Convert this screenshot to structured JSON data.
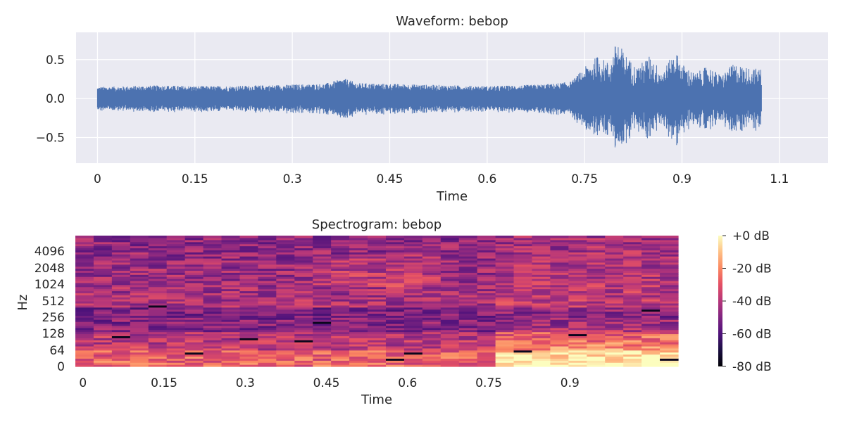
{
  "chart_data": [
    {
      "type": "line",
      "title": "Waveform: bebop",
      "xlabel": "Time",
      "ylabel": "",
      "xlim": [
        -0.033,
        1.125
      ],
      "ylim": [
        -0.83,
        0.85
      ],
      "x_ticks": [
        0,
        0.15,
        0.3,
        0.45,
        0.6,
        0.75,
        0.9,
        1.05
      ],
      "x_tick_labels": [
        "0",
        "0.15",
        "0.3",
        "0.45",
        "0.6",
        "0.75",
        "0.9",
        "1.1"
      ],
      "y_ticks": [
        0.5,
        0.0,
        -0.5
      ],
      "y_tick_labels": [
        "0.5",
        "0.0",
        "−0.5"
      ],
      "grid": true,
      "line_color": "#4c72b0",
      "background": "#eaeaf2",
      "duration": 1.023,
      "envelope": [
        {
          "t": 0.0,
          "a": 0.15
        },
        {
          "t": 0.05,
          "a": 0.16
        },
        {
          "t": 0.1,
          "a": 0.17
        },
        {
          "t": 0.15,
          "a": 0.16
        },
        {
          "t": 0.2,
          "a": 0.16
        },
        {
          "t": 0.25,
          "a": 0.17
        },
        {
          "t": 0.3,
          "a": 0.18
        },
        {
          "t": 0.35,
          "a": 0.19
        },
        {
          "t": 0.38,
          "a": 0.26
        },
        {
          "t": 0.4,
          "a": 0.2
        },
        {
          "t": 0.45,
          "a": 0.19
        },
        {
          "t": 0.5,
          "a": 0.18
        },
        {
          "t": 0.55,
          "a": 0.17
        },
        {
          "t": 0.6,
          "a": 0.16
        },
        {
          "t": 0.65,
          "a": 0.17
        },
        {
          "t": 0.7,
          "a": 0.19
        },
        {
          "t": 0.73,
          "a": 0.22
        },
        {
          "t": 0.75,
          "a": 0.4
        },
        {
          "t": 0.77,
          "a": 0.55
        },
        {
          "t": 0.79,
          "a": 0.45
        },
        {
          "t": 0.8,
          "a": 0.78
        },
        {
          "t": 0.81,
          "a": 0.6
        },
        {
          "t": 0.83,
          "a": 0.4
        },
        {
          "t": 0.85,
          "a": 0.55
        },
        {
          "t": 0.87,
          "a": 0.35
        },
        {
          "t": 0.89,
          "a": 0.62
        },
        {
          "t": 0.9,
          "a": 0.45
        },
        {
          "t": 0.92,
          "a": 0.32
        },
        {
          "t": 0.94,
          "a": 0.42
        },
        {
          "t": 0.96,
          "a": 0.3
        },
        {
          "t": 0.98,
          "a": 0.45
        },
        {
          "t": 1.0,
          "a": 0.4
        },
        {
          "t": 1.023,
          "a": 0.38
        }
      ]
    },
    {
      "type": "heatmap",
      "title": "Spectrogram: bebop",
      "xlabel": "Time",
      "ylabel": "Hz",
      "x_ticks": [
        0,
        0.15,
        0.3,
        0.45,
        0.6,
        0.75,
        0.9
      ],
      "x_tick_labels": [
        "0",
        "0.15",
        "0.3",
        "0.45",
        "0.6",
        "0.75",
        "0.9"
      ],
      "xlim": [
        -0.014,
        1.1
      ],
      "y_tick_labels": [
        "0",
        "64",
        "128",
        "256",
        "512",
        "1024",
        "2048",
        "4096"
      ],
      "colormap": "magma",
      "colorbar": {
        "range": [
          -80,
          0
        ],
        "tick_values": [
          0,
          -20,
          -40,
          -60,
          -80
        ],
        "tick_labels": [
          "+0 dB",
          "-20 dB",
          "-40 dB",
          "-60 dB",
          "-80 dB"
        ]
      }
    }
  ]
}
